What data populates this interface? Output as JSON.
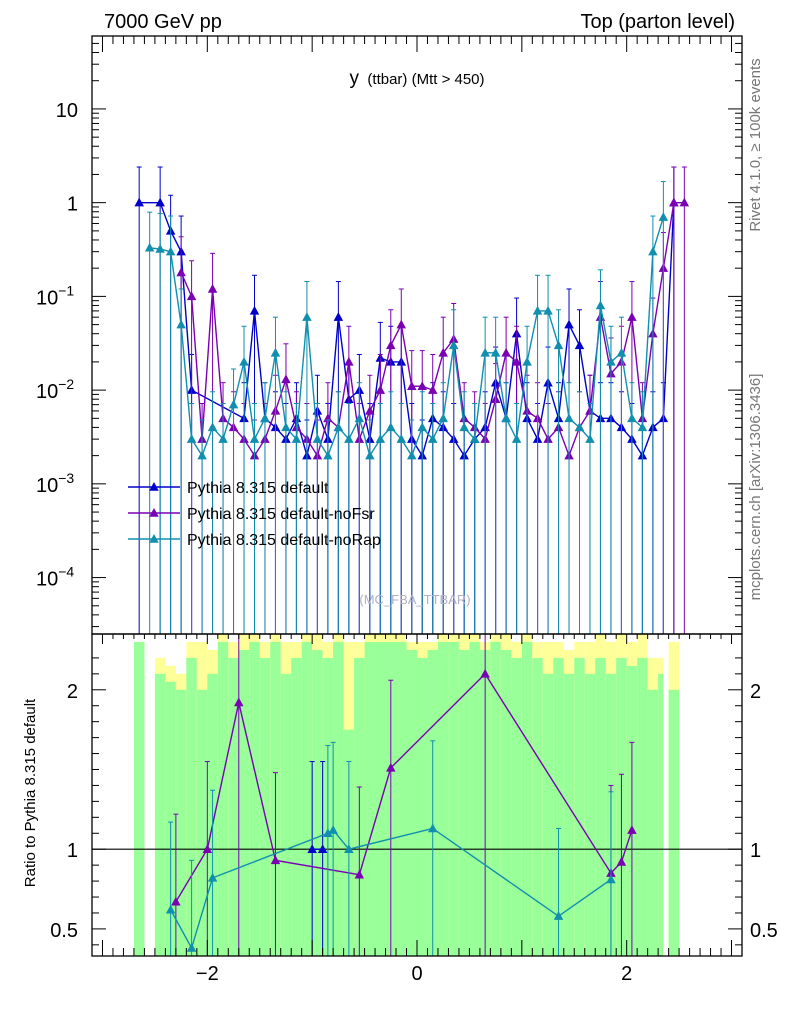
{
  "header": {
    "left": "7000 GeV pp",
    "right": "Top (parton level)"
  },
  "side_labels": {
    "rivet": "Rivet 4.1.0, ≥ 100k events",
    "mcplots": "mcplots.cern.ch [arXiv:1306.3436]"
  },
  "chart_data": {
    "type": "line",
    "title_main": "y",
    "title_sub": "(ttbar) (Mtt > 450)",
    "watermark": "(MC_FBA_TTBAR)",
    "xlim": [
      -3.1,
      3.1
    ],
    "x_ticks": [
      {
        "v": -2,
        "label": "−2"
      },
      {
        "v": 0,
        "label": "0"
      },
      {
        "v": 2,
        "label": "2"
      }
    ],
    "upper": {
      "yscale": "log",
      "ylim": [
        2.5e-05,
        60
      ],
      "y_ticks": [
        {
          "v": 10,
          "base": "10",
          "exp": ""
        },
        {
          "v": 1,
          "base": "1",
          "exp": ""
        },
        {
          "v": 0.1,
          "base": "10",
          "exp": "−1"
        },
        {
          "v": 0.01,
          "base": "10",
          "exp": "−2"
        },
        {
          "v": 0.001,
          "base": "10",
          "exp": "−3"
        },
        {
          "v": 0.0001,
          "base": "10",
          "exp": "−4"
        }
      ]
    },
    "lower": {
      "ylabel": "Ratio to Pythia 8.315 default",
      "ylim": [
        0.33,
        2.35
      ],
      "reference_line": 1,
      "y_ticks": [
        {
          "v": 0.5,
          "label": "0.5"
        },
        {
          "v": 1,
          "label": "1"
        },
        {
          "v": 2,
          "label": "2"
        }
      ],
      "band_outer_color": "#ffff99",
      "band_inner_color": "#99ff99",
      "band_bins": [
        [
          -2.7,
          -2.6,
          2.3,
          2.3
        ],
        [
          -2.5,
          -2.4,
          2.1,
          2.2
        ],
        [
          -2.4,
          -2.3,
          2.05,
          2.15
        ],
        [
          -2.3,
          -2.2,
          2.0,
          2.1
        ],
        [
          -2.2,
          -2.1,
          2.2,
          2.3
        ],
        [
          -2.1,
          -2.0,
          2.0,
          2.3
        ],
        [
          -2.0,
          -1.9,
          2.1,
          2.25
        ],
        [
          -1.9,
          -1.8,
          2.3,
          2.35
        ],
        [
          -1.8,
          -1.7,
          2.2,
          2.3
        ],
        [
          -1.7,
          -1.6,
          2.25,
          2.35
        ],
        [
          -1.6,
          -1.5,
          2.3,
          2.35
        ],
        [
          -1.5,
          -1.4,
          2.2,
          2.3
        ],
        [
          -1.4,
          -1.3,
          2.3,
          2.35
        ],
        [
          -1.3,
          -1.2,
          2.1,
          2.3
        ],
        [
          -1.2,
          -1.1,
          2.2,
          2.3
        ],
        [
          -1.1,
          -1.0,
          2.3,
          2.35
        ],
        [
          -1.0,
          -0.9,
          2.25,
          2.35
        ],
        [
          -0.9,
          -0.8,
          2.2,
          2.3
        ],
        [
          -0.8,
          -0.7,
          2.3,
          2.35
        ],
        [
          -0.7,
          -0.6,
          1.75,
          2.3
        ],
        [
          -0.6,
          -0.5,
          2.2,
          2.3
        ],
        [
          -0.5,
          -0.4,
          2.3,
          2.35
        ],
        [
          -0.4,
          -0.3,
          2.3,
          2.35
        ],
        [
          -0.3,
          -0.2,
          2.3,
          2.35
        ],
        [
          -0.2,
          -0.1,
          2.3,
          2.35
        ],
        [
          -0.1,
          0.0,
          2.25,
          2.3
        ],
        [
          0.0,
          0.1,
          2.2,
          2.3
        ],
        [
          0.1,
          0.2,
          2.25,
          2.3
        ],
        [
          0.2,
          0.3,
          2.3,
          2.35
        ],
        [
          0.3,
          0.4,
          2.3,
          2.35
        ],
        [
          0.4,
          0.5,
          2.25,
          2.35
        ],
        [
          0.5,
          0.6,
          2.3,
          2.35
        ],
        [
          0.6,
          0.7,
          2.25,
          2.3
        ],
        [
          0.7,
          0.8,
          2.3,
          2.35
        ],
        [
          0.8,
          0.9,
          2.25,
          2.35
        ],
        [
          0.9,
          1.0,
          2.2,
          2.3
        ],
        [
          1.0,
          1.1,
          2.3,
          2.35
        ],
        [
          1.1,
          1.2,
          2.2,
          2.3
        ],
        [
          1.2,
          1.3,
          2.1,
          2.3
        ],
        [
          1.3,
          1.4,
          2.2,
          2.3
        ],
        [
          1.4,
          1.5,
          2.1,
          2.25
        ],
        [
          1.5,
          1.6,
          2.2,
          2.3
        ],
        [
          1.6,
          1.7,
          2.1,
          2.3
        ],
        [
          1.7,
          1.8,
          2.2,
          2.35
        ],
        [
          1.8,
          1.9,
          2.1,
          2.3
        ],
        [
          1.9,
          2.0,
          2.2,
          2.35
        ],
        [
          2.0,
          2.1,
          2.15,
          2.3
        ],
        [
          2.1,
          2.2,
          2.2,
          2.35
        ],
        [
          2.2,
          2.3,
          2.0,
          2.2
        ],
        [
          2.3,
          2.35,
          2.1,
          2.2
        ],
        [
          2.4,
          2.5,
          2.0,
          2.3
        ]
      ]
    },
    "series": [
      {
        "name": "Pythia 8.315 default",
        "color": "#0000cc",
        "points": [
          [
            -2.65,
            1.0
          ],
          [
            -2.45,
            1.0
          ],
          [
            -2.35,
            0.5
          ],
          [
            -2.25,
            0.3
          ],
          [
            -2.15,
            0.01
          ],
          [
            -1.65,
            0.005
          ],
          [
            -1.55,
            0.07
          ],
          [
            -1.45,
            0.005
          ],
          [
            -1.35,
            0.004
          ],
          [
            -1.25,
            0.003
          ],
          [
            -1.15,
            0.005
          ],
          [
            -1.05,
            0.002
          ],
          [
            -0.95,
            0.006
          ],
          [
            -0.85,
            0.003
          ],
          [
            -0.75,
            0.06
          ],
          [
            -0.65,
            0.008
          ],
          [
            -0.55,
            0.01
          ],
          [
            -0.45,
            0.003
          ],
          [
            -0.35,
            0.022
          ],
          [
            -0.25,
            0.02
          ],
          [
            -0.15,
            0.02
          ],
          [
            -0.05,
            0.003
          ],
          [
            0.05,
            0.002
          ],
          [
            0.15,
            0.005
          ],
          [
            0.25,
            0.004
          ],
          [
            0.35,
            0.003
          ],
          [
            0.45,
            0.002
          ],
          [
            0.55,
            0.003
          ],
          [
            0.65,
            0.004
          ],
          [
            0.75,
            0.012
          ],
          [
            0.85,
            0.005
          ],
          [
            0.95,
            0.04
          ],
          [
            1.05,
            0.005
          ],
          [
            1.15,
            0.003
          ],
          [
            1.25,
            0.012
          ],
          [
            1.35,
            0.005
          ],
          [
            1.45,
            0.05
          ],
          [
            1.55,
            0.03
          ],
          [
            1.65,
            0.006
          ],
          [
            1.75,
            0.005
          ],
          [
            1.85,
            0.005
          ],
          [
            1.95,
            0.004
          ],
          [
            2.05,
            0.003
          ],
          [
            2.15,
            0.002
          ],
          [
            2.25,
            0.004
          ],
          [
            2.35,
            0.005
          ],
          [
            2.45,
            1.0
          ]
        ],
        "ratio": [
          [
            -1.0,
            1.0
          ],
          [
            -0.9,
            1.0
          ]
        ]
      },
      {
        "name": "Pythia 8.315 default-noFsr",
        "color": "#7b00b4",
        "points": [
          [
            -2.25,
            0.18
          ],
          [
            -2.15,
            0.1
          ],
          [
            -2.05,
            0.003
          ],
          [
            -1.95,
            0.12
          ],
          [
            -1.85,
            0.005
          ],
          [
            -1.75,
            0.004
          ],
          [
            -1.65,
            0.003
          ],
          [
            -1.55,
            0.002
          ],
          [
            -1.45,
            0.003
          ],
          [
            -1.35,
            0.006
          ],
          [
            -1.25,
            0.013
          ],
          [
            -1.15,
            0.004
          ],
          [
            -1.05,
            0.003
          ],
          [
            -0.95,
            0.002
          ],
          [
            -0.85,
            0.005
          ],
          [
            -0.75,
            0.004
          ],
          [
            -0.65,
            0.02
          ],
          [
            -0.55,
            0.003
          ],
          [
            -0.45,
            0.006
          ],
          [
            -0.35,
            0.01
          ],
          [
            -0.25,
            0.03
          ],
          [
            -0.15,
            0.05
          ],
          [
            -0.05,
            0.011
          ],
          [
            0.05,
            0.011
          ],
          [
            0.15,
            0.01
          ],
          [
            0.25,
            0.025
          ],
          [
            0.35,
            0.035
          ],
          [
            0.45,
            0.005
          ],
          [
            0.55,
            0.004
          ],
          [
            0.65,
            0.003
          ],
          [
            0.75,
            0.008
          ],
          [
            0.85,
            0.025
          ],
          [
            0.95,
            0.02
          ],
          [
            1.05,
            0.006
          ],
          [
            1.15,
            0.005
          ],
          [
            1.25,
            0.003
          ],
          [
            1.35,
            0.004
          ],
          [
            1.45,
            0.002
          ],
          [
            1.55,
            0.004
          ],
          [
            1.65,
            0.006
          ],
          [
            1.75,
            0.06
          ],
          [
            1.85,
            0.015
          ],
          [
            1.95,
            0.02
          ],
          [
            2.05,
            0.06
          ],
          [
            2.15,
            0.005
          ],
          [
            2.25,
            0.04
          ],
          [
            2.35,
            0.2
          ],
          [
            2.45,
            1.0
          ],
          [
            2.55,
            1.0
          ]
        ],
        "ratio": [
          [
            -2.3,
            0.67
          ],
          [
            -2.0,
            1.0
          ],
          [
            -1.7,
            1.92
          ],
          [
            -1.35,
            0.93
          ],
          [
            -0.55,
            0.84
          ],
          [
            -0.25,
            1.51
          ],
          [
            0.65,
            2.1
          ],
          [
            1.85,
            0.85
          ],
          [
            1.95,
            0.92
          ],
          [
            2.05,
            1.12
          ]
        ]
      },
      {
        "name": "Pythia 8.315 default-noRap",
        "color": "#118fae",
        "points": [
          [
            -2.55,
            0.33
          ],
          [
            -2.45,
            0.32
          ],
          [
            -2.35,
            0.3
          ],
          [
            -2.25,
            0.05
          ],
          [
            -2.15,
            0.003
          ],
          [
            -2.05,
            0.002
          ],
          [
            -1.95,
            0.004
          ],
          [
            -1.85,
            0.003
          ],
          [
            -1.75,
            0.007
          ],
          [
            -1.65,
            0.02
          ],
          [
            -1.55,
            0.003
          ],
          [
            -1.45,
            0.005
          ],
          [
            -1.35,
            0.025
          ],
          [
            -1.25,
            0.004
          ],
          [
            -1.15,
            0.003
          ],
          [
            -1.05,
            0.06
          ],
          [
            -0.95,
            0.003
          ],
          [
            -0.85,
            0.002
          ],
          [
            -0.75,
            0.004
          ],
          [
            -0.65,
            0.003
          ],
          [
            -0.55,
            0.005
          ],
          [
            -0.45,
            0.002
          ],
          [
            -0.35,
            0.003
          ],
          [
            -0.25,
            0.004
          ],
          [
            -0.15,
            0.003
          ],
          [
            -0.05,
            0.002
          ],
          [
            0.05,
            0.004
          ],
          [
            0.15,
            0.003
          ],
          [
            0.25,
            0.005
          ],
          [
            0.35,
            0.03
          ],
          [
            0.45,
            0.004
          ],
          [
            0.55,
            0.003
          ],
          [
            0.65,
            0.025
          ],
          [
            0.75,
            0.025
          ],
          [
            0.85,
            0.005
          ],
          [
            0.95,
            0.003
          ],
          [
            1.05,
            0.02
          ],
          [
            1.15,
            0.07
          ],
          [
            1.25,
            0.07
          ],
          [
            1.35,
            0.03
          ],
          [
            1.45,
            0.005
          ],
          [
            1.55,
            0.004
          ],
          [
            1.65,
            0.003
          ],
          [
            1.75,
            0.08
          ],
          [
            1.85,
            0.02
          ],
          [
            1.95,
            0.025
          ],
          [
            2.05,
            0.005
          ],
          [
            2.15,
            0.004
          ],
          [
            2.25,
            0.3
          ],
          [
            2.35,
            0.7
          ]
        ],
        "ratio": [
          [
            -2.35,
            0.62
          ],
          [
            -2.15,
            0.38
          ],
          [
            -1.95,
            0.82
          ],
          [
            -0.85,
            1.1
          ],
          [
            -0.8,
            1.12
          ],
          [
            -0.65,
            1.0
          ],
          [
            0.15,
            1.13
          ],
          [
            1.35,
            0.58
          ],
          [
            1.85,
            0.81
          ]
        ]
      }
    ]
  }
}
